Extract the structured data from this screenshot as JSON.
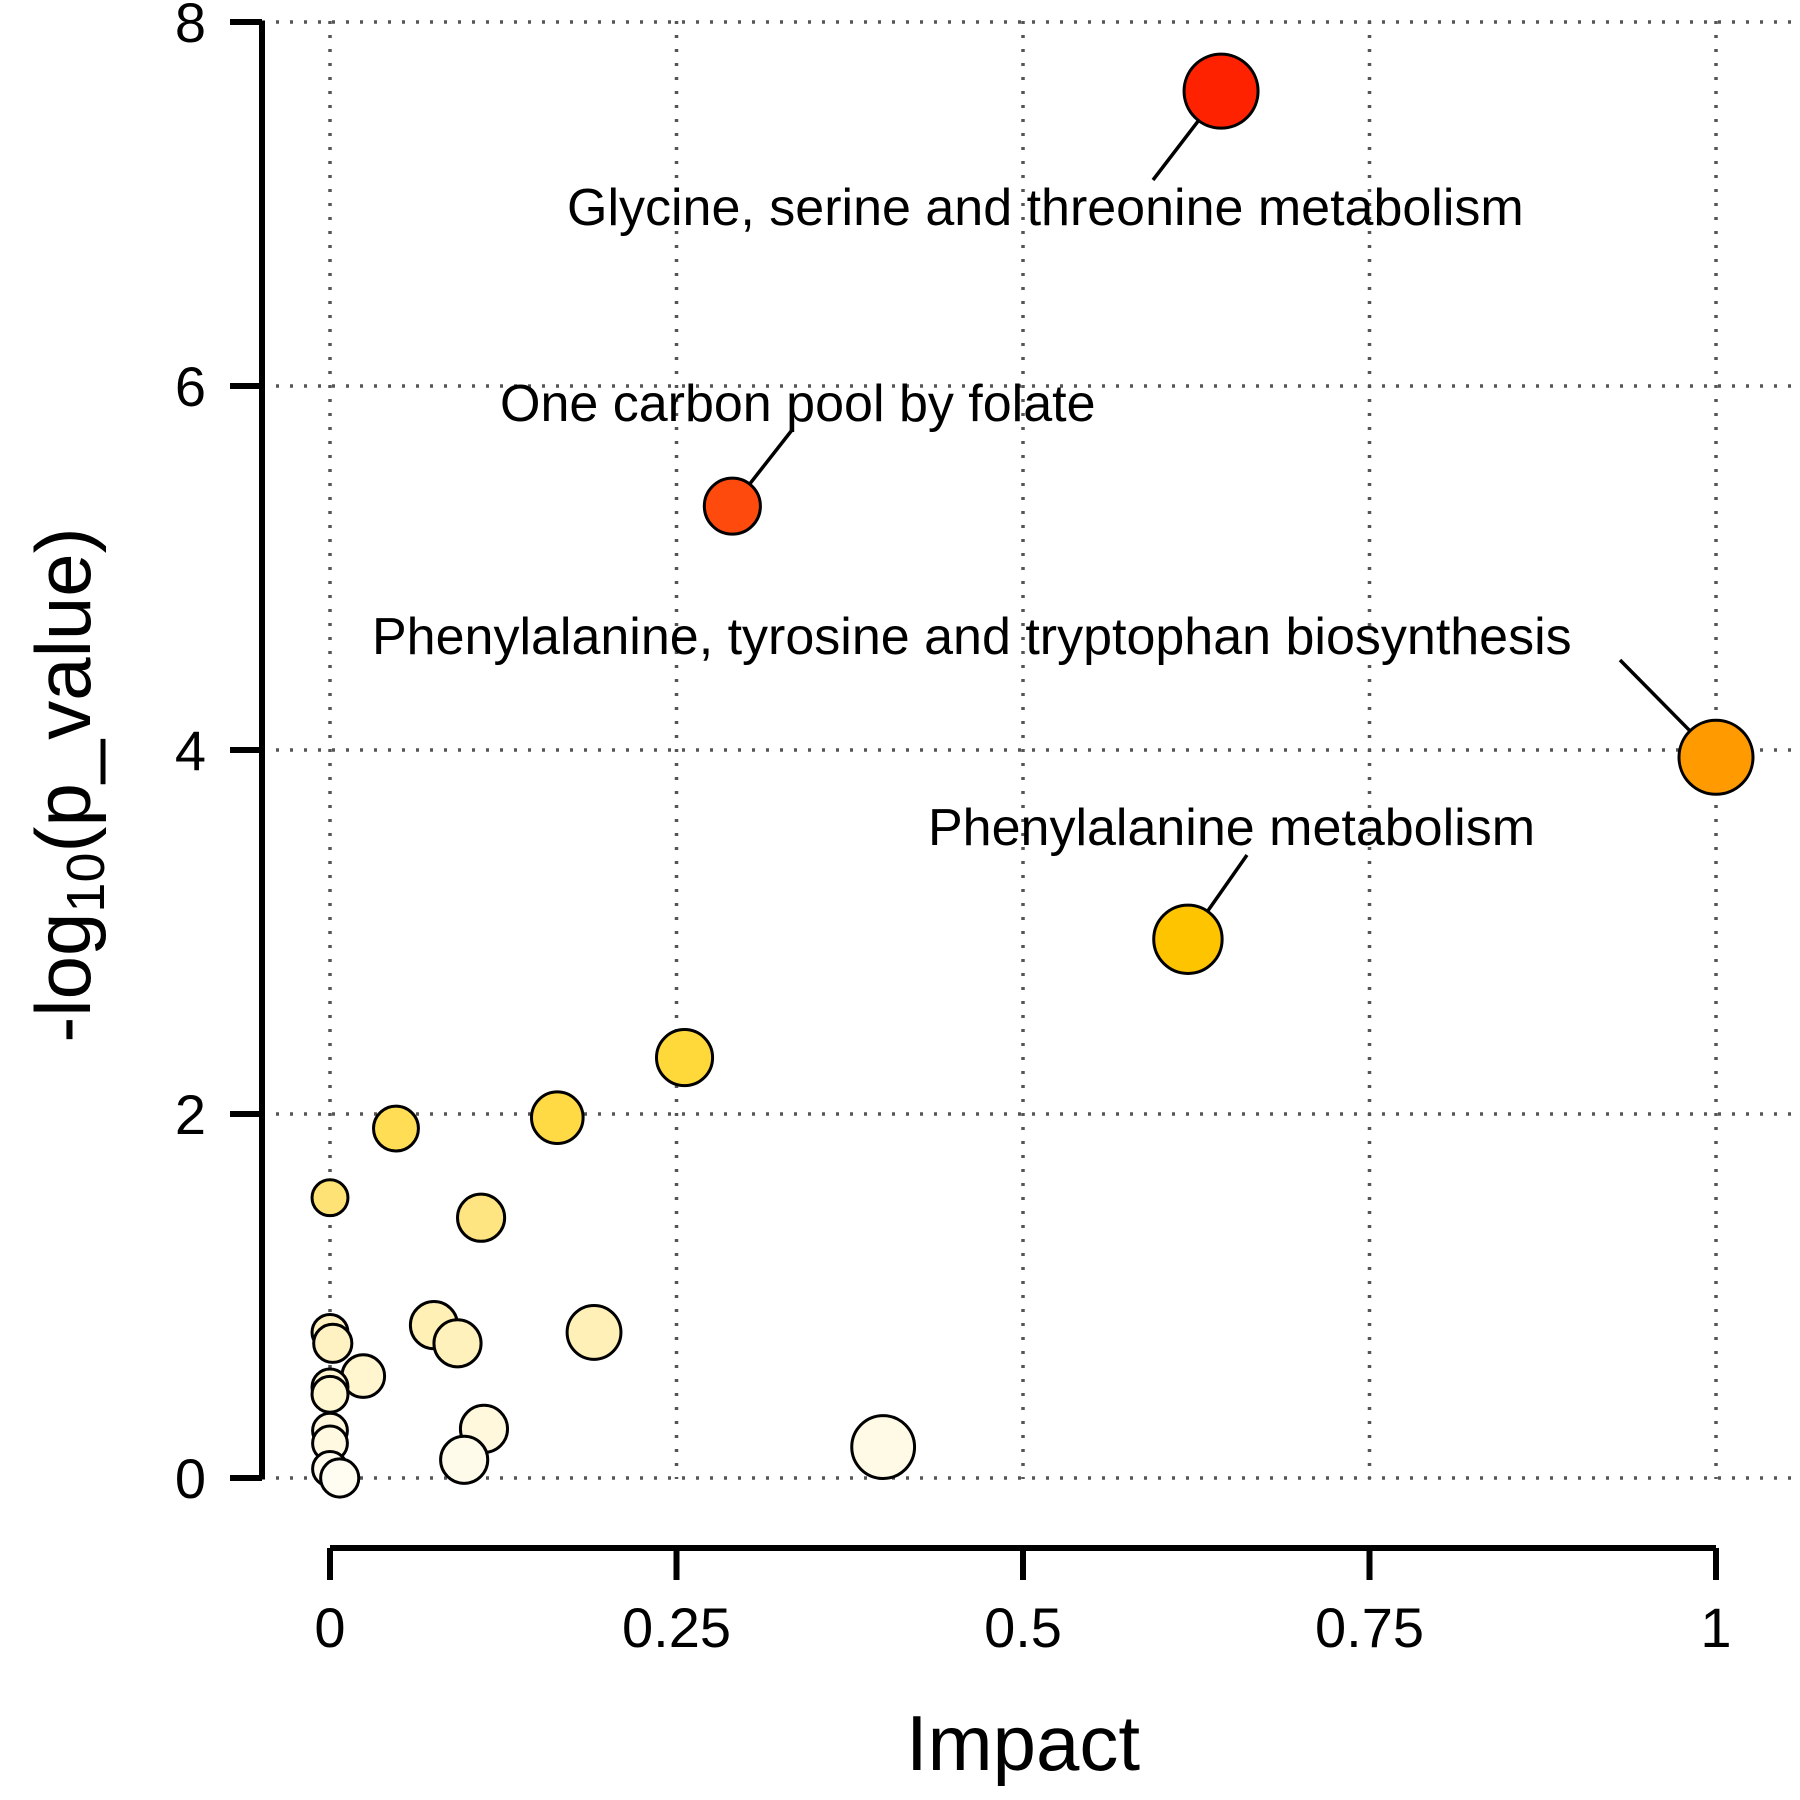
{
  "chart_data": {
    "type": "scatter",
    "xlabel": "Impact",
    "ylabel_main": "-log",
    "ylabel_sub": "10",
    "ylabel_tail": "(p_value)",
    "xlim": [
      0,
      1
    ],
    "ylim": [
      0,
      8
    ],
    "x_ticks": [
      {
        "value": 0,
        "label": "0"
      },
      {
        "value": 0.25,
        "label": "0.25"
      },
      {
        "value": 0.5,
        "label": "0.5"
      },
      {
        "value": 0.75,
        "label": "0.75"
      },
      {
        "value": 1,
        "label": "1"
      }
    ],
    "y_ticks": [
      {
        "value": 0,
        "label": "0"
      },
      {
        "value": 2,
        "label": "2"
      },
      {
        "value": 4,
        "label": "4"
      },
      {
        "value": 6,
        "label": "6"
      },
      {
        "value": 8,
        "label": "8"
      }
    ],
    "grid": true,
    "points": [
      {
        "x": 0.6429,
        "y": 7.62,
        "size": 1.0,
        "color": "#FF2200"
      },
      {
        "x": 0.2903,
        "y": 5.34,
        "size": 0.68,
        "color": "#FF4A0E"
      },
      {
        "x": 1.0,
        "y": 3.96,
        "size": 1.0,
        "color": "#FF9A00"
      },
      {
        "x": 0.619,
        "y": 2.96,
        "size": 0.9,
        "color": "#FFC400"
      },
      {
        "x": 0.2558,
        "y": 2.31,
        "size": 0.68,
        "color": "#FFD83A"
      },
      {
        "x": 0.164,
        "y": 1.98,
        "size": 0.6,
        "color": "#FFDA45"
      },
      {
        "x": 0.0476,
        "y": 1.92,
        "size": 0.48,
        "color": "#FFDE55"
      },
      {
        "x": 0.0,
        "y": 1.54,
        "size": 0.32,
        "color": "#FFE275"
      },
      {
        "x": 0.109,
        "y": 1.43,
        "size": 0.52,
        "color": "#FFE482"
      },
      {
        "x": 0.1905,
        "y": 0.8,
        "size": 0.64,
        "color": "#FFF0B8"
      },
      {
        "x": 0.075,
        "y": 0.84,
        "size": 0.52,
        "color": "#FFF0B5"
      },
      {
        "x": 0.092,
        "y": 0.74,
        "size": 0.52,
        "color": "#FFF1BC"
      },
      {
        "x": 0.0,
        "y": 0.8,
        "size": 0.32,
        "color": "#FFF2C0"
      },
      {
        "x": 0.002,
        "y": 0.74,
        "size": 0.36,
        "color": "#FFF2C2"
      },
      {
        "x": 0.024,
        "y": 0.56,
        "size": 0.44,
        "color": "#FFF5CE"
      },
      {
        "x": 0.0,
        "y": 0.5,
        "size": 0.32,
        "color": "#FFF5D0"
      },
      {
        "x": 0.0,
        "y": 0.46,
        "size": 0.32,
        "color": "#FFF6D2"
      },
      {
        "x": 0.1111,
        "y": 0.27,
        "size": 0.52,
        "color": "#FFF8DD"
      },
      {
        "x": 0.0,
        "y": 0.26,
        "size": 0.3,
        "color": "#FFF8DE"
      },
      {
        "x": 0.0,
        "y": 0.19,
        "size": 0.3,
        "color": "#FFF9E2"
      },
      {
        "x": 0.3991,
        "y": 0.17,
        "size": 0.8,
        "color": "#FFFAE5"
      },
      {
        "x": 0.0968,
        "y": 0.1,
        "size": 0.52,
        "color": "#FFFBEA"
      },
      {
        "x": 0.0,
        "y": 0.05,
        "size": 0.3,
        "color": "#FFFCEE"
      },
      {
        "x": 0.007,
        "y": 0.0,
        "size": 0.36,
        "color": "#FFFDF2"
      }
    ],
    "annotations": [
      {
        "text": "Glycine, serine and threonine metabolism",
        "point_index": 0
      },
      {
        "text": "One carbon pool by folate",
        "point_index": 1
      },
      {
        "text": "Phenylalanine, tyrosine and tryptophan biosynthesis",
        "point_index": 2
      },
      {
        "text": "Phenylalanine metabolism",
        "point_index": 3
      }
    ]
  }
}
